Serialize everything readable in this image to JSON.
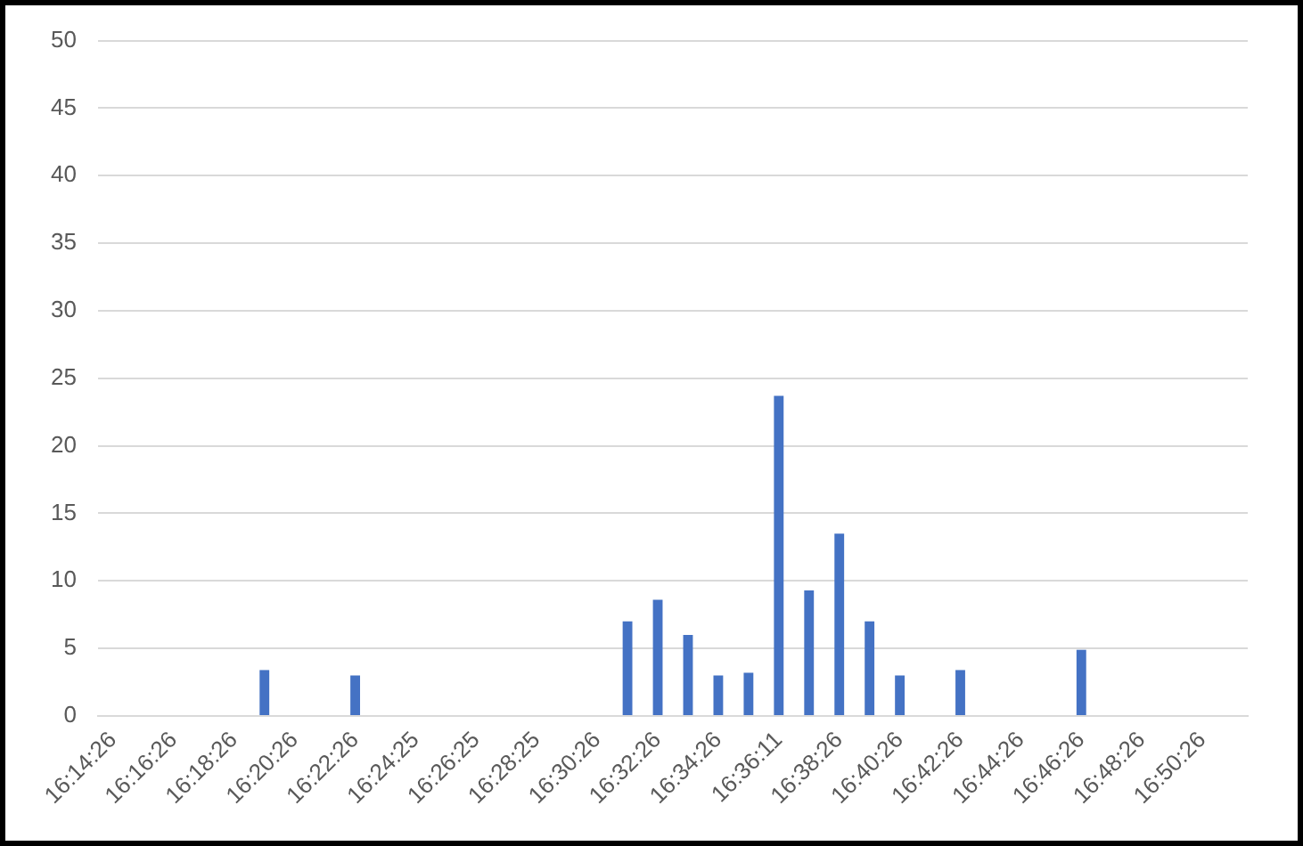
{
  "chart_data": {
    "type": "bar",
    "categories": [
      "16:14:26",
      null,
      "16:16:26",
      null,
      "16:18:26",
      null,
      "16:20:26",
      null,
      "16:22:26",
      null,
      "16:24:25",
      null,
      "16:26:25",
      null,
      "16:28:25",
      null,
      "16:30:26",
      null,
      "16:32:26",
      null,
      "16:34:26",
      null,
      "16:36:11",
      null,
      "16:38:26",
      null,
      "16:40:26",
      null,
      "16:42:26",
      null,
      "16:44:26",
      null,
      "16:46:26",
      null,
      "16:48:26",
      null,
      "16:50:26",
      null
    ],
    "values": [
      null,
      null,
      null,
      null,
      null,
      3.4,
      null,
      null,
      3.0,
      null,
      null,
      null,
      null,
      null,
      null,
      null,
      null,
      7.0,
      8.6,
      6.0,
      3.0,
      3.2,
      23.7,
      9.3,
      13.5,
      7.0,
      3.0,
      null,
      3.4,
      null,
      null,
      null,
      4.9,
      null,
      null,
      null,
      null,
      null
    ],
    "color": "#4472c4",
    "ylim": [
      0,
      50
    ],
    "yticks": [
      0,
      5,
      10,
      15,
      20,
      25,
      30,
      35,
      40,
      45,
      50
    ],
    "grid": "y",
    "legend": false
  }
}
